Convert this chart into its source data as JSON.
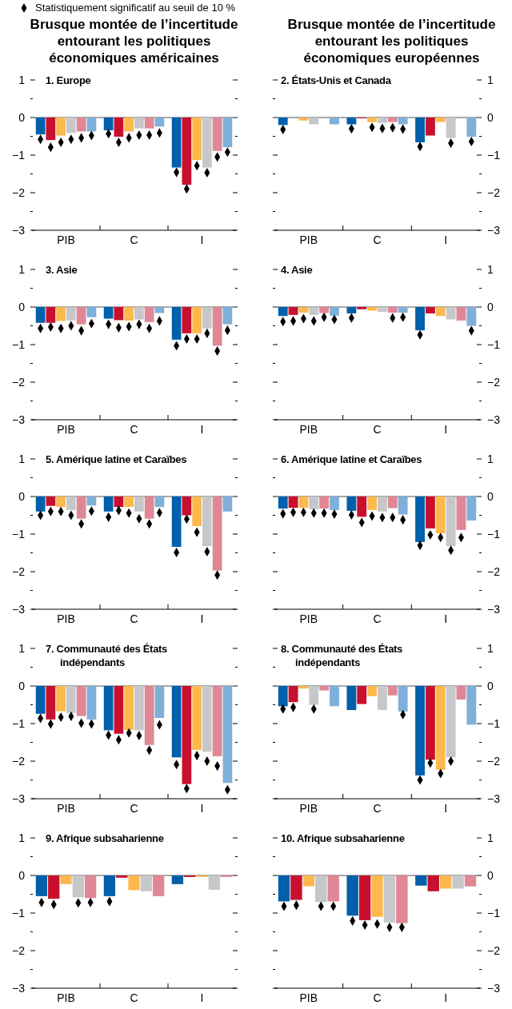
{
  "chart_data": [
    {
      "type": "bar",
      "title": "Brusque montée de l’incertitude entourant les politiques économiques américaines",
      "subtitle": "1. Europe",
      "legend": "top",
      "marker": "diamond",
      "categories": [
        "PIB",
        "C",
        "I"
      ],
      "ylim": [
        -3,
        1
      ],
      "yticks": [
        {
          "value": 1,
          "label": "1"
        },
        {
          "value": 0.5,
          "label": null
        },
        {
          "value": 0,
          "label": "0"
        },
        {
          "value": -0.5,
          "label": null
        },
        {
          "value": -1,
          "label": "−1"
        },
        {
          "value": -1.5,
          "label": null
        },
        {
          "value": -2,
          "label": "−2"
        },
        {
          "value": -2.5,
          "label": null
        },
        {
          "value": -3,
          "label": "−3"
        }
      ],
      "ref_lines": [
        {
          "axis": "y",
          "value": 0,
          "color": "#8c8c8c"
        }
      ],
      "series": [
        {
          "color": "#0060ac",
          "values": [
            -0.45,
            -0.34,
            -1.33
          ]
        },
        {
          "color": "#c8102e",
          "values": [
            -0.6,
            -0.51,
            -1.79
          ]
        },
        {
          "color": "#fdb94e",
          "values": [
            -0.48,
            -0.37,
            -1.13
          ]
        },
        {
          "color": "#c6c7c9",
          "values": [
            -0.41,
            -0.29,
            -1.33
          ]
        },
        {
          "color": "#e08795",
          "values": [
            -0.37,
            -0.29,
            -0.89
          ]
        },
        {
          "color": "#7fb0d9",
          "values": [
            -0.37,
            -0.24,
            -0.79
          ]
        },
        {
          "type": "scatter",
          "name": "Statistiquement significatif au seuil de 10 %",
          "color": "#000000",
          "x": [
            "PIB",
            "C",
            "I"
          ],
          "values": [
            -0.58,
            -0.43,
            -1.46
          ]
        },
        {
          "type": "scatter",
          "color": "#000000",
          "x": [
            "PIB",
            "C",
            "I"
          ],
          "values": [
            -0.79,
            -0.66,
            -1.9
          ]
        },
        {
          "type": "scatter",
          "color": "#000000",
          "x": [
            "PIB",
            "C",
            "I"
          ],
          "values": [
            -0.66,
            -0.54,
            -1.28
          ]
        },
        {
          "type": "scatter",
          "color": "#000000",
          "x": [
            "PIB",
            "C",
            "I"
          ],
          "values": [
            -0.58,
            -0.47,
            -1.47
          ]
        },
        {
          "type": "scatter",
          "color": "#000000",
          "x": [
            "PIB",
            "C",
            "I"
          ],
          "values": [
            -0.54,
            -0.47,
            -1.05
          ]
        },
        {
          "type": "scatter",
          "color": "#000000",
          "x": [
            "PIB",
            "C",
            "I"
          ],
          "values": [
            -0.48,
            -0.41,
            -0.92
          ]
        }
      ]
    },
    {
      "type": "bar",
      "title": "Brusque montée de l’incertitude entourant les politiques économiques européennes",
      "subtitle": "2. États-Unis et Canada",
      "marker": "diamond",
      "categories": [
        "PIB",
        "C",
        "I"
      ],
      "y2lim": [
        -3,
        1
      ],
      "y2ticks": [
        {
          "value": 1,
          "label": "1"
        },
        {
          "value": 0.5,
          "label": null
        },
        {
          "value": 0,
          "label": "0"
        },
        {
          "value": -0.5,
          "label": null
        },
        {
          "value": -1,
          "label": "−1"
        },
        {
          "value": -1.5,
          "label": null
        },
        {
          "value": -2,
          "label": "−2"
        },
        {
          "value": -2.5,
          "label": null
        },
        {
          "value": -3,
          "label": "−3"
        }
      ],
      "ref_lines": [
        {
          "axis": "y2",
          "value": 0,
          "color": "#8c8c8c"
        }
      ],
      "series": [
        {
          "axis": "y2",
          "color": "#0060ac",
          "values": [
            -0.2,
            -0.18,
            -0.66
          ]
        },
        {
          "axis": "y2",
          "color": "#c8102e",
          "values": [
            0,
            -0.02,
            -0.48
          ]
        },
        {
          "axis": "y2",
          "color": "#fdb94e",
          "values": [
            -0.08,
            -0.12,
            -0.12
          ]
        },
        {
          "axis": "y2",
          "color": "#c6c7c9",
          "values": [
            -0.18,
            -0.14,
            -0.54
          ]
        },
        {
          "axis": "y2",
          "color": "#e08795",
          "values": [
            0,
            -0.12,
            0
          ]
        },
        {
          "axis": "y2",
          "color": "#7fb0d9",
          "values": [
            -0.18,
            -0.18,
            -0.51
          ]
        },
        {
          "axis": "y2",
          "type": "scatter",
          "color": "#000000",
          "x": [
            "PIB",
            "C",
            "I"
          ],
          "values": [
            -0.32,
            -0.3,
            -0.77
          ]
        },
        {
          "axis": "y2",
          "type": "scatter",
          "color": "#000000",
          "x": [
            "PIB",
            "C",
            "I"
          ],
          "values": [
            null,
            null,
            null
          ]
        },
        {
          "axis": "y2",
          "type": "scatter",
          "color": "#000000",
          "x": [
            "PIB",
            "C",
            "I"
          ],
          "values": [
            null,
            -0.26,
            null
          ]
        },
        {
          "axis": "y2",
          "type": "scatter",
          "color": "#000000",
          "x": [
            "PIB",
            "C",
            "I"
          ],
          "values": [
            null,
            -0.29,
            -0.68
          ]
        },
        {
          "axis": "y2",
          "type": "scatter",
          "color": "#000000",
          "x": [
            "PIB",
            "C",
            "I"
          ],
          "values": [
            null,
            -0.27,
            null
          ]
        },
        {
          "axis": "y2",
          "type": "scatter",
          "color": "#000000",
          "x": [
            "PIB",
            "C",
            "I"
          ],
          "values": [
            null,
            -0.31,
            -0.64
          ]
        }
      ]
    },
    {
      "type": "bar",
      "subtitle": "3. Asie",
      "marker": "diamond",
      "categories": [
        "PIB",
        "C",
        "I"
      ],
      "ylim": [
        -3,
        1
      ],
      "yticks": [
        {
          "value": 1,
          "label": "1"
        },
        {
          "value": 0.5,
          "label": null
        },
        {
          "value": 0,
          "label": "0"
        },
        {
          "value": -0.5,
          "label": null
        },
        {
          "value": -1,
          "label": "−1"
        },
        {
          "value": -1.5,
          "label": null
        },
        {
          "value": -2,
          "label": "−2"
        },
        {
          "value": -2.5,
          "label": null
        },
        {
          "value": -3,
          "label": "−3"
        }
      ],
      "ref_lines": [
        {
          "axis": "y",
          "value": 0,
          "color": "#8c8c8c"
        }
      ],
      "series": [
        {
          "color": "#0060ac",
          "values": [
            -0.42,
            -0.31,
            -0.87
          ]
        },
        {
          "color": "#c8102e",
          "values": [
            -0.42,
            -0.35,
            -0.7
          ]
        },
        {
          "color": "#fdb94e",
          "values": [
            -0.37,
            -0.36,
            -0.7
          ]
        },
        {
          "color": "#c6c7c9",
          "values": [
            -0.36,
            -0.33,
            -0.57
          ]
        },
        {
          "color": "#e08795",
          "values": [
            -0.46,
            -0.4,
            -1.03
          ]
        },
        {
          "color": "#7fb0d9",
          "values": [
            -0.27,
            -0.16,
            -0.46
          ]
        },
        {
          "type": "scatter",
          "color": "#000000",
          "x": [
            "PIB",
            "C",
            "I"
          ],
          "values": [
            -0.57,
            -0.46,
            -1.03
          ]
        },
        {
          "type": "scatter",
          "color": "#000000",
          "x": [
            "PIB",
            "C",
            "I"
          ],
          "values": [
            -0.53,
            -0.55,
            -0.85
          ]
        },
        {
          "type": "scatter",
          "color": "#000000",
          "x": [
            "PIB",
            "C",
            "I"
          ],
          "values": [
            -0.57,
            -0.52,
            -0.85
          ]
        },
        {
          "type": "scatter",
          "color": "#000000",
          "x": [
            "PIB",
            "C",
            "I"
          ],
          "values": [
            -0.5,
            -0.46,
            -0.7
          ]
        },
        {
          "type": "scatter",
          "color": "#000000",
          "x": [
            "PIB",
            "C",
            "I"
          ],
          "values": [
            -0.63,
            -0.57,
            -1.17
          ]
        },
        {
          "type": "scatter",
          "color": "#000000",
          "x": [
            "PIB",
            "C",
            "I"
          ],
          "values": [
            -0.44,
            -0.37,
            -0.62
          ]
        }
      ]
    },
    {
      "type": "bar",
      "subtitle": "4. Asie",
      "marker": "diamond",
      "categories": [
        "PIB",
        "C",
        "I"
      ],
      "y2lim": [
        -3,
        1
      ],
      "y2ticks": [
        {
          "value": 1,
          "label": "1"
        },
        {
          "value": 0.5,
          "label": null
        },
        {
          "value": 0,
          "label": "0"
        },
        {
          "value": -0.5,
          "label": null
        },
        {
          "value": -1,
          "label": "−1"
        },
        {
          "value": -1.5,
          "label": null
        },
        {
          "value": -2,
          "label": "−2"
        },
        {
          "value": -2.5,
          "label": null
        },
        {
          "value": -3,
          "label": "−3"
        }
      ],
      "ref_lines": [
        {
          "axis": "y2",
          "value": 0,
          "color": "#8c8c8c"
        }
      ],
      "series": [
        {
          "axis": "y2",
          "color": "#0060ac",
          "values": [
            -0.24,
            -0.17,
            -0.62
          ]
        },
        {
          "axis": "y2",
          "color": "#c8102e",
          "values": [
            -0.21,
            -0.06,
            -0.17
          ]
        },
        {
          "axis": "y2",
          "color": "#fdb94e",
          "values": [
            -0.15,
            -0.1,
            -0.24
          ]
        },
        {
          "axis": "y2",
          "color": "#c6c7c9",
          "values": [
            -0.21,
            -0.13,
            -0.33
          ]
        },
        {
          "axis": "y2",
          "color": "#e08795",
          "values": [
            -0.16,
            -0.15,
            -0.36
          ]
        },
        {
          "axis": "y2",
          "color": "#7fb0d9",
          "values": [
            -0.23,
            -0.15,
            -0.5
          ]
        },
        {
          "axis": "y2",
          "type": "scatter",
          "color": "#000000",
          "x": [
            "PIB",
            "C",
            "I"
          ],
          "values": [
            -0.39,
            -0.29,
            -0.74
          ]
        },
        {
          "axis": "y2",
          "type": "scatter",
          "color": "#000000",
          "x": [
            "PIB",
            "C",
            "I"
          ],
          "values": [
            -0.37,
            null,
            null
          ]
        },
        {
          "axis": "y2",
          "type": "scatter",
          "color": "#000000",
          "x": [
            "PIB",
            "C",
            "I"
          ],
          "values": [
            -0.31,
            null,
            null
          ]
        },
        {
          "axis": "y2",
          "type": "scatter",
          "color": "#000000",
          "x": [
            "PIB",
            "C",
            "I"
          ],
          "values": [
            -0.37,
            null,
            null
          ]
        },
        {
          "axis": "y2",
          "type": "scatter",
          "color": "#000000",
          "x": [
            "PIB",
            "C",
            "I"
          ],
          "values": [
            -0.27,
            -0.29,
            null
          ]
        },
        {
          "axis": "y2",
          "type": "scatter",
          "color": "#000000",
          "x": [
            "PIB",
            "C",
            "I"
          ],
          "values": [
            -0.33,
            -0.27,
            -0.63
          ]
        }
      ]
    },
    {
      "type": "bar",
      "subtitle": "5. Amérique latine et Caraïbes",
      "marker": "diamond",
      "categories": [
        "PIB",
        "C",
        "I"
      ],
      "ylim": [
        -3,
        1
      ],
      "yticks": [
        {
          "value": 1,
          "label": "1"
        },
        {
          "value": 0.5,
          "label": null
        },
        {
          "value": 0,
          "label": "0"
        },
        {
          "value": -0.5,
          "label": null
        },
        {
          "value": -1,
          "label": "−1"
        },
        {
          "value": -1.5,
          "label": null
        },
        {
          "value": -2,
          "label": "−2"
        },
        {
          "value": -2.5,
          "label": null
        },
        {
          "value": -3,
          "label": "−3"
        }
      ],
      "ref_lines": [
        {
          "axis": "y",
          "value": 0,
          "color": "#8c8c8c"
        }
      ],
      "series": [
        {
          "color": "#0060ac",
          "values": [
            -0.4,
            -0.4,
            -1.34
          ]
        },
        {
          "color": "#c8102e",
          "values": [
            -0.25,
            -0.28,
            -0.5
          ]
        },
        {
          "color": "#fdb94e",
          "values": [
            -0.28,
            -0.28,
            -0.79
          ]
        },
        {
          "color": "#c6c7c9",
          "values": [
            -0.36,
            -0.4,
            -1.32
          ]
        },
        {
          "color": "#e08795",
          "values": [
            -0.59,
            -0.59,
            -1.97
          ]
        },
        {
          "color": "#7fb0d9",
          "values": [
            -0.24,
            -0.28,
            -0.4
          ]
        },
        {
          "type": "scatter",
          "color": "#000000",
          "x": [
            "PIB",
            "C",
            "I"
          ],
          "values": [
            -0.5,
            -0.55,
            -1.49
          ]
        },
        {
          "type": "scatter",
          "color": "#000000",
          "x": [
            "PIB",
            "C",
            "I"
          ],
          "values": [
            -0.4,
            -0.37,
            -0.6
          ]
        },
        {
          "type": "scatter",
          "color": "#000000",
          "x": [
            "PIB",
            "C",
            "I"
          ],
          "values": [
            -0.4,
            -0.44,
            -0.95
          ]
        },
        {
          "type": "scatter",
          "color": "#000000",
          "x": [
            "PIB",
            "C",
            "I"
          ],
          "values": [
            -0.5,
            -0.59,
            -1.47
          ]
        },
        {
          "type": "scatter",
          "color": "#000000",
          "x": [
            "PIB",
            "C",
            "I"
          ],
          "values": [
            -0.73,
            -0.73,
            -2.09
          ]
        },
        {
          "type": "scatter",
          "color": "#000000",
          "x": [
            "PIB",
            "C",
            "I"
          ],
          "values": [
            -0.39,
            -0.43,
            null
          ]
        }
      ]
    },
    {
      "type": "bar",
      "subtitle": "6. Amérique latine et Caraïbes",
      "marker": "diamond",
      "categories": [
        "PIB",
        "C",
        "I"
      ],
      "y2lim": [
        -3,
        1
      ],
      "y2ticks": [
        {
          "value": 1,
          "label": "1"
        },
        {
          "value": 0.5,
          "label": null
        },
        {
          "value": 0,
          "label": "0"
        },
        {
          "value": -0.5,
          "label": null
        },
        {
          "value": -1,
          "label": "−1"
        },
        {
          "value": -1.5,
          "label": null
        },
        {
          "value": -2,
          "label": "−2"
        },
        {
          "value": -2.5,
          "label": null
        },
        {
          "value": -3,
          "label": "−3"
        }
      ],
      "ref_lines": [
        {
          "axis": "y2",
          "value": 0,
          "color": "#8c8c8c"
        }
      ],
      "series": [
        {
          "axis": "y2",
          "color": "#0060ac",
          "values": [
            -0.32,
            -0.38,
            -1.21
          ]
        },
        {
          "axis": "y2",
          "color": "#c8102e",
          "values": [
            -0.3,
            -0.54,
            -0.85
          ]
        },
        {
          "axis": "y2",
          "color": "#fdb94e",
          "values": [
            -0.3,
            -0.36,
            -0.98
          ]
        },
        {
          "axis": "y2",
          "color": "#c6c7c9",
          "values": [
            -0.34,
            -0.4,
            -1.32
          ]
        },
        {
          "axis": "y2",
          "color": "#e08795",
          "values": [
            -0.32,
            -0.31,
            -0.89
          ]
        },
        {
          "axis": "y2",
          "color": "#7fb0d9",
          "values": [
            -0.36,
            -0.48,
            -0.64
          ]
        },
        {
          "axis": "y2",
          "type": "scatter",
          "color": "#000000",
          "x": [
            "PIB",
            "C",
            "I"
          ],
          "values": [
            -0.46,
            -0.49,
            -1.3
          ]
        },
        {
          "axis": "y2",
          "type": "scatter",
          "color": "#000000",
          "x": [
            "PIB",
            "C",
            "I"
          ],
          "values": [
            -0.42,
            -0.69,
            -1.02
          ]
        },
        {
          "axis": "y2",
          "type": "scatter",
          "color": "#000000",
          "x": [
            "PIB",
            "C",
            "I"
          ],
          "values": [
            -0.42,
            -0.52,
            -1.09
          ]
        },
        {
          "axis": "y2",
          "type": "scatter",
          "color": "#000000",
          "x": [
            "PIB",
            "C",
            "I"
          ],
          "values": [
            -0.44,
            -0.56,
            -1.43
          ]
        },
        {
          "axis": "y2",
          "type": "scatter",
          "color": "#000000",
          "x": [
            "PIB",
            "C",
            "I"
          ],
          "values": [
            -0.44,
            -0.56,
            -1.09
          ]
        },
        {
          "axis": "y2",
          "type": "scatter",
          "color": "#000000",
          "x": [
            "PIB",
            "C",
            "I"
          ],
          "values": [
            -0.47,
            -0.62,
            null
          ]
        }
      ]
    },
    {
      "type": "bar",
      "subtitle": "7. Communauté des États indépendants",
      "marker": "diamond",
      "categories": [
        "PIB",
        "C",
        "I"
      ],
      "ylim": [
        -3,
        1
      ],
      "yticks": [
        {
          "value": 1,
          "label": "1"
        },
        {
          "value": 0.5,
          "label": null
        },
        {
          "value": 0,
          "label": "0"
        },
        {
          "value": -0.5,
          "label": null
        },
        {
          "value": -1,
          "label": "−1"
        },
        {
          "value": -1.5,
          "label": null
        },
        {
          "value": -2,
          "label": "−2"
        },
        {
          "value": -2.5,
          "label": null
        },
        {
          "value": -3,
          "label": "−3"
        }
      ],
      "ref_lines": [
        {
          "axis": "y",
          "value": 0,
          "color": "#8c8c8c"
        }
      ],
      "series": [
        {
          "color": "#0060ac",
          "values": [
            -0.74,
            -1.18,
            -1.9
          ]
        },
        {
          "color": "#c8102e",
          "values": [
            -0.89,
            -1.27,
            -2.61
          ]
        },
        {
          "color": "#fdb94e",
          "values": [
            -0.67,
            -1.17,
            -1.7
          ]
        },
        {
          "color": "#c6c7c9",
          "values": [
            -0.72,
            -1.18,
            -1.75
          ]
        },
        {
          "color": "#e08795",
          "values": [
            -0.8,
            -1.57,
            -1.87
          ]
        },
        {
          "color": "#7fb0d9",
          "values": [
            -0.89,
            -0.85,
            -2.58
          ]
        },
        {
          "type": "scatter",
          "color": "#000000",
          "x": [
            "PIB",
            "C",
            "I"
          ],
          "values": [
            -0.86,
            -1.31,
            -2.09
          ]
        },
        {
          "type": "scatter",
          "color": "#000000",
          "x": [
            "PIB",
            "C",
            "I"
          ],
          "values": [
            -1.01,
            -1.43,
            -2.73
          ]
        },
        {
          "type": "scatter",
          "color": "#000000",
          "x": [
            "PIB",
            "C",
            "I"
          ],
          "values": [
            -0.83,
            -1.25,
            -1.85
          ]
        },
        {
          "type": "scatter",
          "color": "#000000",
          "x": [
            "PIB",
            "C",
            "I"
          ],
          "values": [
            -0.81,
            -1.32,
            -2.0
          ]
        },
        {
          "type": "scatter",
          "color": "#000000",
          "x": [
            "PIB",
            "C",
            "I"
          ],
          "values": [
            -0.99,
            -1.71,
            -2.13
          ]
        },
        {
          "type": "scatter",
          "color": "#000000",
          "x": [
            "PIB",
            "C",
            "I"
          ],
          "values": [
            -1.01,
            -1.03,
            -2.76
          ]
        }
      ]
    },
    {
      "type": "bar",
      "subtitle": "8. Communauté des États indépendants",
      "marker": "diamond",
      "categories": [
        "PIB",
        "C",
        "I"
      ],
      "y2lim": [
        -3,
        1
      ],
      "y2ticks": [
        {
          "value": 1,
          "label": "1"
        },
        {
          "value": 0.5,
          "label": null
        },
        {
          "value": 0,
          "label": "0"
        },
        {
          "value": -0.5,
          "label": null
        },
        {
          "value": -1,
          "label": "−1"
        },
        {
          "value": -1.5,
          "label": null
        },
        {
          "value": -2,
          "label": "−2"
        },
        {
          "value": -2.5,
          "label": null
        },
        {
          "value": -3,
          "label": "−3"
        }
      ],
      "ref_lines": [
        {
          "axis": "y2",
          "value": 0,
          "color": "#8c8c8c"
        }
      ],
      "series": [
        {
          "axis": "y2",
          "color": "#0060ac",
          "values": [
            -0.54,
            -0.64,
            -2.38
          ]
        },
        {
          "axis": "y2",
          "color": "#c8102e",
          "values": [
            -0.43,
            -0.48,
            -1.96
          ]
        },
        {
          "axis": "y2",
          "color": "#fdb94e",
          "values": [
            -0.07,
            -0.27,
            -2.23
          ]
        },
        {
          "axis": "y2",
          "color": "#c6c7c9",
          "values": [
            -0.5,
            -0.64,
            -1.9
          ]
        },
        {
          "axis": "y2",
          "color": "#e08795",
          "values": [
            -0.12,
            -0.25,
            -0.36
          ]
        },
        {
          "axis": "y2",
          "color": "#7fb0d9",
          "values": [
            -0.54,
            -0.68,
            -1.03
          ]
        },
        {
          "axis": "y2",
          "type": "scatter",
          "color": "#000000",
          "x": [
            "PIB",
            "C",
            "I"
          ],
          "values": [
            -0.61,
            null,
            -2.5
          ]
        },
        {
          "axis": "y2",
          "type": "scatter",
          "color": "#000000",
          "x": [
            "PIB",
            "C",
            "I"
          ],
          "values": [
            -0.57,
            null,
            -2.05
          ]
        },
        {
          "axis": "y2",
          "type": "scatter",
          "color": "#000000",
          "x": [
            "PIB",
            "C",
            "I"
          ],
          "values": [
            null,
            null,
            -2.33
          ]
        },
        {
          "axis": "y2",
          "type": "scatter",
          "color": "#000000",
          "x": [
            "PIB",
            "C",
            "I"
          ],
          "values": [
            -0.61,
            null,
            -2.0
          ]
        },
        {
          "axis": "y2",
          "type": "scatter",
          "color": "#000000",
          "x": [
            "PIB",
            "C",
            "I"
          ],
          "values": [
            null,
            null,
            null
          ]
        },
        {
          "axis": "y2",
          "type": "scatter",
          "color": "#000000",
          "x": [
            "PIB",
            "C",
            "I"
          ],
          "values": [
            null,
            -0.76,
            null
          ]
        }
      ]
    },
    {
      "type": "bar",
      "subtitle": "9. Afrique subsaharienne",
      "marker": "diamond",
      "categories": [
        "PIB",
        "C",
        "I"
      ],
      "ylim": [
        -3,
        1
      ],
      "yticks": [
        {
          "value": 1,
          "label": "1"
        },
        {
          "value": 0.5,
          "label": null
        },
        {
          "value": 0,
          "label": "0"
        },
        {
          "value": -0.5,
          "label": null
        },
        {
          "value": -1,
          "label": "−1"
        },
        {
          "value": -1.5,
          "label": null
        },
        {
          "value": -2,
          "label": "−2"
        },
        {
          "value": -2.5,
          "label": null
        },
        {
          "value": -3,
          "label": "−3"
        }
      ],
      "ref_lines": [
        {
          "axis": "y",
          "value": 0,
          "color": "#8c8c8c"
        }
      ],
      "series": [
        {
          "color": "#0060ac",
          "values": [
            -0.55,
            -0.55,
            -0.23
          ]
        },
        {
          "color": "#c8102e",
          "values": [
            -0.62,
            -0.06,
            -0.04
          ]
        },
        {
          "color": "#fdb94e",
          "values": [
            -0.23,
            -0.39,
            -0.04
          ]
        },
        {
          "color": "#c6c7c9",
          "values": [
            -0.58,
            -0.42,
            -0.38
          ]
        },
        {
          "color": "#e08795",
          "values": [
            -0.6,
            -0.55,
            -0.04
          ]
        },
        {
          "type": "scatter",
          "color": "#000000",
          "x": [
            "PIB",
            "C",
            "I"
          ],
          "values": [
            -0.72,
            -0.69,
            null
          ]
        },
        {
          "type": "scatter",
          "color": "#000000",
          "x": [
            "PIB",
            "C",
            "I"
          ],
          "values": [
            -0.77,
            null,
            null
          ]
        },
        {
          "type": "scatter",
          "color": "#000000",
          "x": [
            "PIB",
            "C",
            "I"
          ],
          "values": [
            null,
            null,
            null
          ]
        },
        {
          "type": "scatter",
          "color": "#000000",
          "x": [
            "PIB",
            "C",
            "I"
          ],
          "values": [
            -0.73,
            null,
            null
          ]
        },
        {
          "type": "scatter",
          "color": "#000000",
          "x": [
            "PIB",
            "C",
            "I"
          ],
          "values": [
            -0.72,
            null,
            null
          ]
        }
      ]
    },
    {
      "type": "bar",
      "subtitle": "10. Afrique subsaharienne",
      "marker": "diamond",
      "categories": [
        "PIB",
        "C",
        "I"
      ],
      "y2lim": [
        -3,
        1
      ],
      "y2ticks": [
        {
          "value": 1,
          "label": "1"
        },
        {
          "value": 0.5,
          "label": null
        },
        {
          "value": 0,
          "label": "0"
        },
        {
          "value": -0.5,
          "label": null
        },
        {
          "value": -1,
          "label": "−1"
        },
        {
          "value": -1.5,
          "label": null
        },
        {
          "value": -2,
          "label": "−2"
        },
        {
          "value": -2.5,
          "label": null
        },
        {
          "value": -3,
          "label": "−3"
        }
      ],
      "ref_lines": [
        {
          "axis": "y2",
          "value": 0,
          "color": "#8c8c8c"
        }
      ],
      "series": [
        {
          "axis": "y2",
          "color": "#0060ac",
          "values": [
            -0.69,
            -1.07,
            -0.27
          ]
        },
        {
          "axis": "y2",
          "color": "#c8102e",
          "values": [
            -0.65,
            -1.19,
            -0.42
          ]
        },
        {
          "axis": "y2",
          "color": "#fdb94e",
          "values": [
            -0.29,
            -1.1,
            -0.35
          ]
        },
        {
          "axis": "y2",
          "color": "#c6c7c9",
          "values": [
            -0.71,
            -1.25,
            -0.35
          ]
        },
        {
          "axis": "y2",
          "color": "#e08795",
          "values": [
            -0.69,
            -1.27,
            -0.29
          ]
        },
        {
          "axis": "y2",
          "type": "scatter",
          "color": "#000000",
          "x": [
            "PIB",
            "C",
            "I"
          ],
          "values": [
            -0.82,
            -1.21,
            null
          ]
        },
        {
          "axis": "y2",
          "type": "scatter",
          "color": "#000000",
          "x": [
            "PIB",
            "C",
            "I"
          ],
          "values": [
            -0.79,
            -1.32,
            null
          ]
        },
        {
          "axis": "y2",
          "type": "scatter",
          "color": "#000000",
          "x": [
            "PIB",
            "C",
            "I"
          ],
          "values": [
            null,
            -1.29,
            null
          ]
        },
        {
          "axis": "y2",
          "type": "scatter",
          "color": "#000000",
          "x": [
            "PIB",
            "C",
            "I"
          ],
          "values": [
            -0.82,
            -1.38,
            null
          ]
        },
        {
          "axis": "y2",
          "type": "scatter",
          "color": "#000000",
          "x": [
            "PIB",
            "C",
            "I"
          ],
          "values": [
            -0.82,
            -1.38,
            null
          ]
        }
      ]
    }
  ]
}
